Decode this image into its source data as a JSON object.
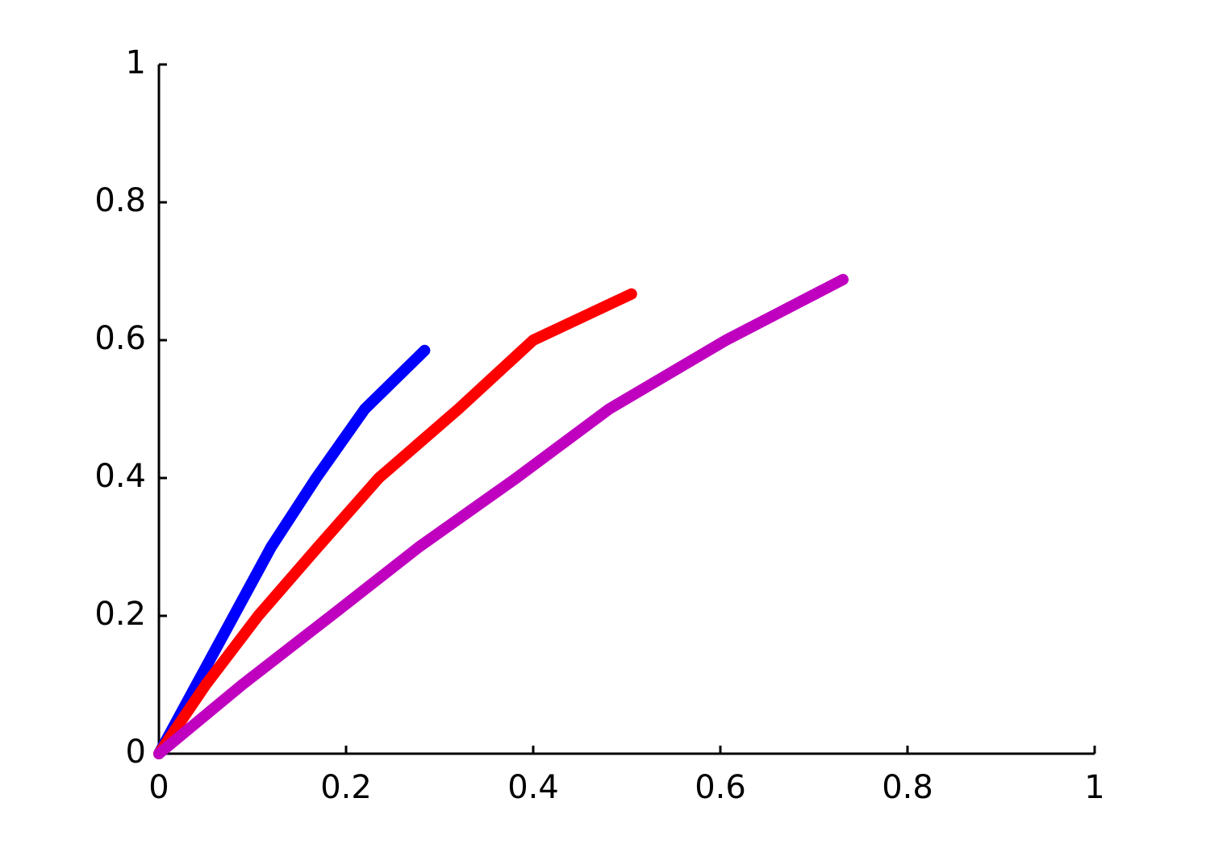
{
  "chart_data": {
    "type": "line",
    "series": [
      {
        "color": "#0000ff",
        "x": [
          0,
          0.04,
          0.08,
          0.12,
          0.168,
          0.22,
          0.284
        ],
        "values": [
          0,
          0.1,
          0.2,
          0.3,
          0.4,
          0.5,
          0.585
        ]
      },
      {
        "color": "#ff0000",
        "x": [
          0,
          0.05,
          0.106,
          0.17,
          0.235,
          0.32,
          0.4,
          0.505
        ],
        "values": [
          0,
          0.1,
          0.2,
          0.3,
          0.4,
          0.5,
          0.6,
          0.667
        ]
      },
      {
        "color": "#bf00bf",
        "x": [
          0,
          0.089,
          0.184,
          0.278,
          0.382,
          0.481,
          0.606,
          0.731
        ],
        "values": [
          0,
          0.1,
          0.2,
          0.3,
          0.4,
          0.5,
          0.6,
          0.688
        ]
      }
    ],
    "xlim": [
      0,
      1
    ],
    "ylim": [
      0,
      1
    ],
    "xticks": [
      0,
      0.2,
      0.4,
      0.6,
      0.8,
      1
    ],
    "yticks": [
      0,
      0.2,
      0.4,
      0.6,
      0.8,
      1
    ],
    "grid": false
  }
}
